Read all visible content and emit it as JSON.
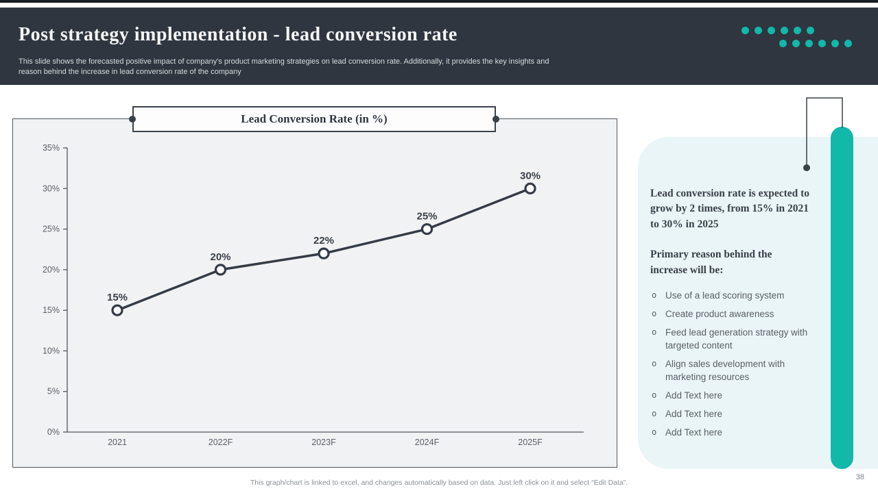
{
  "page": {
    "number": "38"
  },
  "header": {
    "title": "Post strategy implementation - lead conversion rate",
    "subtitle": "This slide shows the forecasted positive impact of company's product marketing strategies on lead conversion rate. Additionally, it  provides the key insights and reason behind the increase in lead conversion rate of the company",
    "bg_color": "#2f3640",
    "dots_color": "#12b8aa",
    "dots_rows": [
      6,
      6
    ]
  },
  "chart_data": {
    "type": "line",
    "title": "Lead Conversion Rate (in %)",
    "categories": [
      "2021",
      "2022F",
      "2023F",
      "2024F",
      "2025F"
    ],
    "series": [
      {
        "name": "Lead Conversion Rate (in %)",
        "values": [
          15,
          20,
          22,
          25,
          30
        ]
      }
    ],
    "data_labels": [
      "15%",
      "20%",
      "22%",
      "25%",
      "30%"
    ],
    "xlabel": "",
    "ylabel": "",
    "ylim": [
      0,
      35
    ],
    "ytick_step": 5,
    "ytick_labels": [
      "0%",
      "5%",
      "10%",
      "15%",
      "20%",
      "25%",
      "30%",
      "35%"
    ],
    "grid": false,
    "legend": "none",
    "line_color": "#343b46",
    "marker": "open-circle",
    "label_color": "#3a4149",
    "axis_text_color": "#595f66"
  },
  "insights": {
    "heading": "Lead conversion rate is expected to grow by 2 times, from 15% in 2021 to 30% in 2025",
    "subheading": "Primary reason behind the increase will be:",
    "bullet_glyph": "o",
    "bullets": [
      "Use of a lead scoring system",
      "Create product awareness",
      "Feed lead generation strategy with targeted content",
      "Align sales development with marketing resources",
      "Add Text here",
      "Add Text here",
      "Add Text here"
    ],
    "panel_color": "#e9f5f7",
    "accent_color": "#12b8aa"
  },
  "footer": {
    "note": "This graph/chart is linked to excel,  and changes automatically based on data. Just left click on it and select “Edit Data”."
  }
}
